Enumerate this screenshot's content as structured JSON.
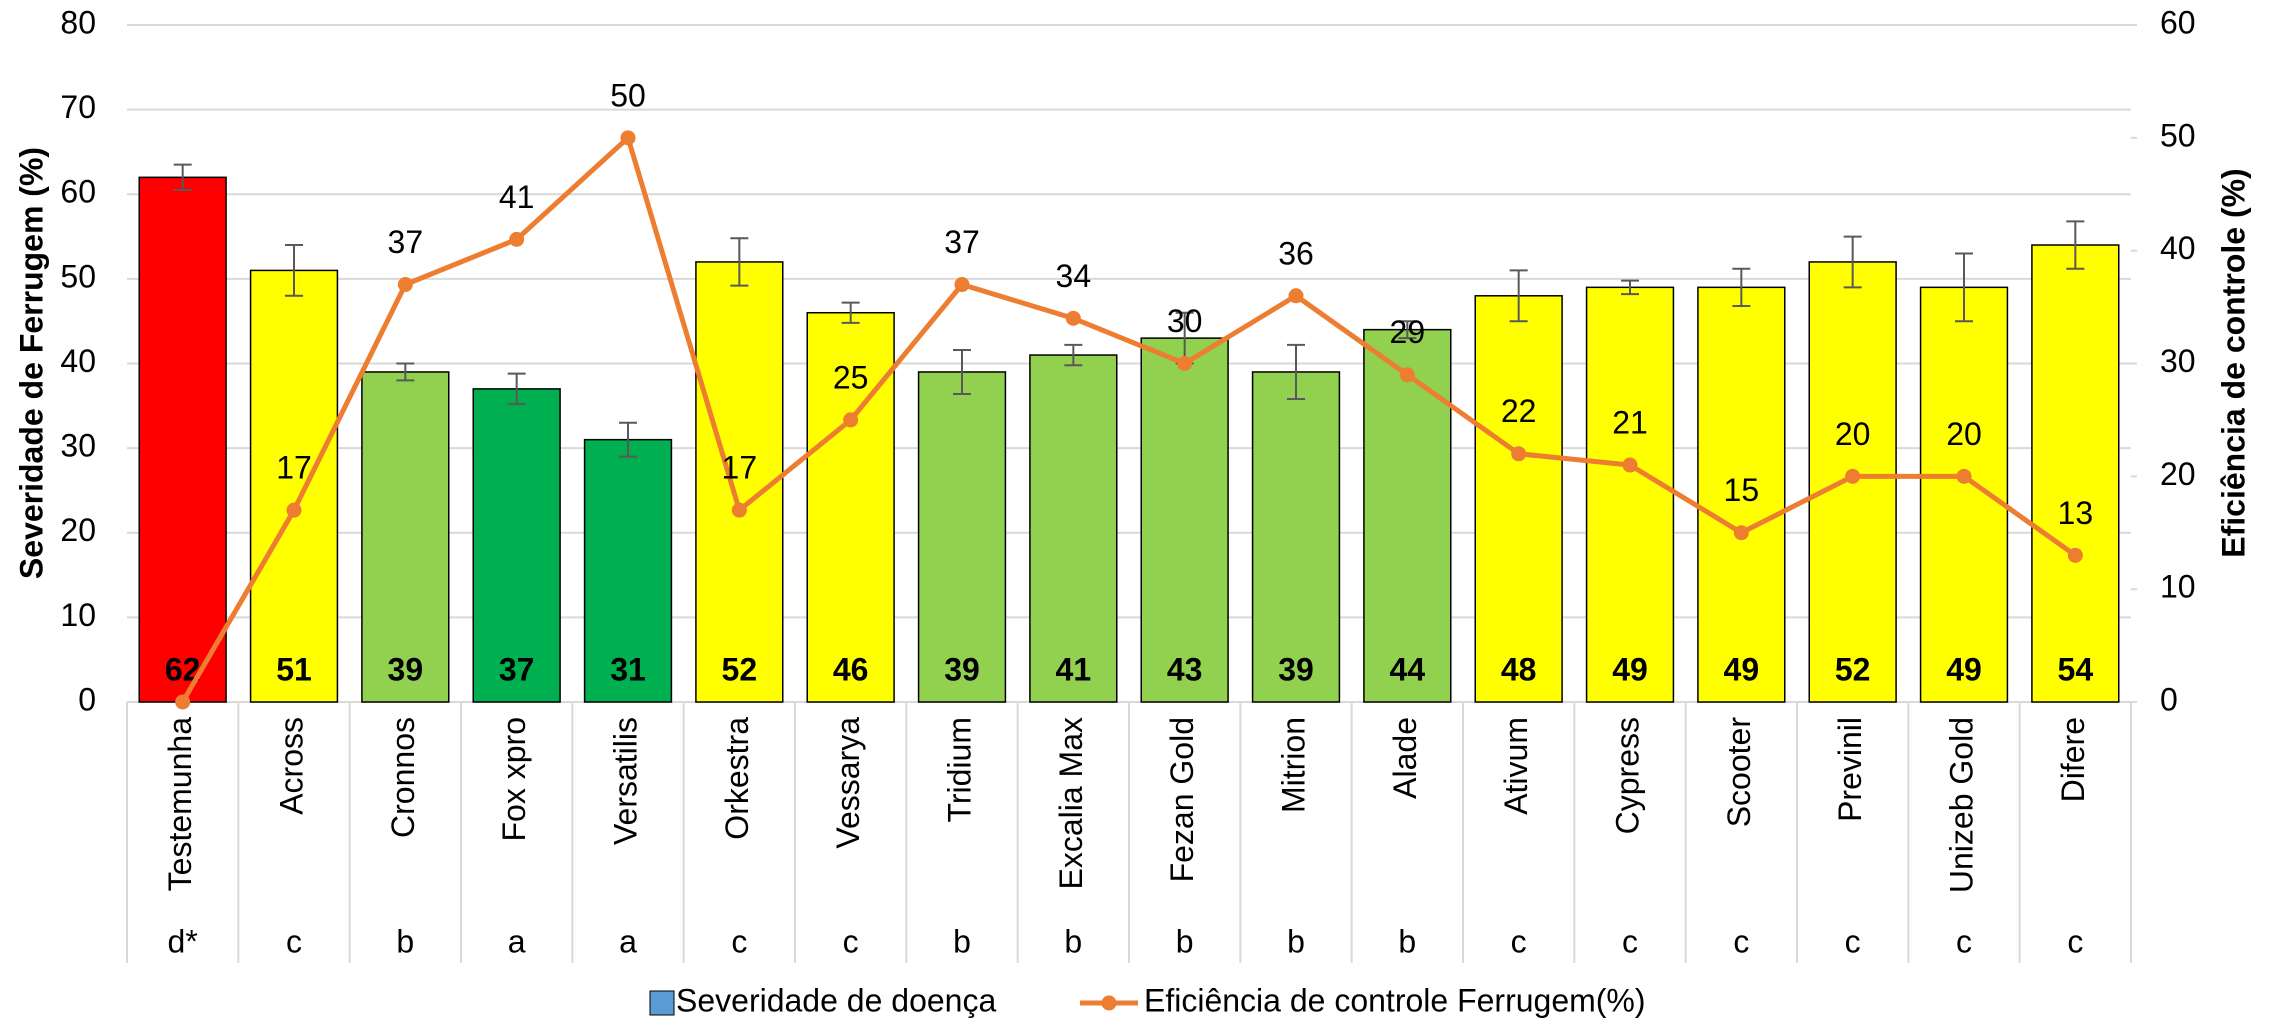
{
  "chart_data": {
    "type": "bar",
    "ylabel": "Severidade de Ferrugem (%)",
    "y2label": "Eficiência de controle (%)",
    "categories": [
      "Testemunha",
      "Across",
      "Cronnos",
      "Fox xpro",
      "Versatilis",
      "Orkestra",
      "Vessarya",
      "Tridium",
      "Excalia Max",
      "Fezan Gold",
      "Mitrion",
      "Alade",
      "Ativum",
      "Cypress",
      "Scooter",
      "Previnil",
      "Unizeb Gold",
      "Difere"
    ],
    "groups": [
      "d*",
      "c",
      "b",
      "a",
      "a",
      "c",
      "c",
      "b",
      "b",
      "b",
      "b",
      "b",
      "c",
      "c",
      "c",
      "c",
      "c",
      "c"
    ],
    "series": [
      {
        "name": "Severidade de doença",
        "type": "bar",
        "color": "#5b9bd5",
        "colors": [
          "#ff0000",
          "#ffff00",
          "#92d050",
          "#00b050",
          "#00b050",
          "#ffff00",
          "#ffff00",
          "#92d050",
          "#92d050",
          "#92d050",
          "#92d050",
          "#92d050",
          "#ffff00",
          "#ffff00",
          "#ffff00",
          "#ffff00",
          "#ffff00",
          "#ffff00"
        ],
        "values": [
          62,
          51,
          39,
          37,
          31,
          52,
          46,
          39,
          41,
          43,
          39,
          44,
          48,
          49,
          49,
          52,
          49,
          54
        ],
        "errors": [
          1.5,
          3,
          1,
          1.8,
          2,
          2.8,
          1.2,
          2.6,
          1.2,
          3,
          3.2,
          1,
          3,
          0.8,
          2.2,
          3,
          4,
          2.8
        ]
      },
      {
        "name": "Eficiência de controle Ferrugem(%)",
        "type": "line",
        "axis": "y2",
        "color": "#ed7d31",
        "values": [
          0,
          17,
          37,
          41,
          50,
          17,
          25,
          37,
          34,
          30,
          36,
          29,
          22,
          21,
          15,
          20,
          20,
          13
        ],
        "value_labels": [
          null,
          "17",
          "37",
          "41",
          "50",
          "17",
          "25",
          "37",
          "34",
          "30",
          "36",
          "29",
          "22",
          "21",
          "15",
          "20",
          "20",
          "13"
        ]
      }
    ],
    "ylim": [
      0,
      80
    ],
    "yticks": [
      0,
      10,
      20,
      30,
      40,
      50,
      60,
      70,
      80
    ],
    "y2lim": [
      0,
      60
    ],
    "y2ticks": [
      0,
      10,
      20,
      30,
      40,
      50,
      60
    ],
    "grid": true,
    "legend": "bottom"
  }
}
